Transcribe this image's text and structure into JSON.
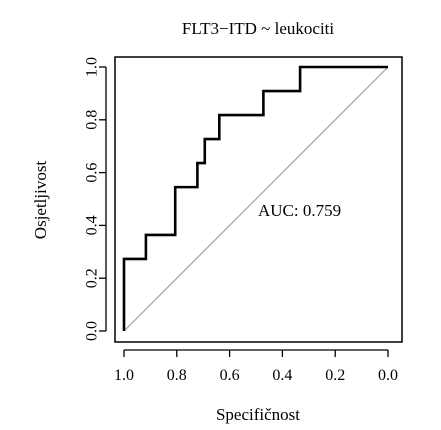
{
  "chart_data": {
    "type": "line",
    "title": "FLT3−ITD ~ leukociti",
    "xlabel": "Specifičnost",
    "ylabel": "Osjetljivost",
    "xlim": [
      1.0,
      0.0
    ],
    "ylim": [
      0.0,
      1.0
    ],
    "x_reversed": true,
    "x_ticks": [
      1.0,
      0.8,
      0.6,
      0.4,
      0.2,
      0.0
    ],
    "y_ticks": [
      0.0,
      0.2,
      0.4,
      0.6,
      0.8,
      1.0
    ],
    "x_tick_labels": [
      "1.0",
      "0.8",
      "0.6",
      "0.4",
      "0.2",
      "0.0"
    ],
    "y_tick_labels": [
      "0.0",
      "0.2",
      "0.4",
      "0.6",
      "0.8",
      "1.0"
    ],
    "grid": false,
    "annotation": "AUC: 0.759",
    "series": [
      {
        "kind": "roc-curve",
        "color": "#000000",
        "specificity": [
          1.0,
          1.0,
          0.917,
          0.917,
          0.806,
          0.806,
          0.722,
          0.722,
          0.694,
          0.694,
          0.667,
          0.667,
          0.639,
          0.639,
          0.472,
          0.472,
          0.333,
          0.333,
          0.0
        ],
        "sensitivity": [
          0.0,
          0.273,
          0.273,
          0.364,
          0.364,
          0.545,
          0.545,
          0.636,
          0.636,
          0.727,
          0.727,
          0.727,
          0.727,
          0.818,
          0.818,
          0.909,
          0.909,
          1.0,
          1.0
        ]
      },
      {
        "kind": "diagonal",
        "color": "#a6a6a6",
        "specificity": [
          1.0,
          0.0
        ],
        "sensitivity": [
          0.0,
          1.0
        ]
      }
    ]
  }
}
